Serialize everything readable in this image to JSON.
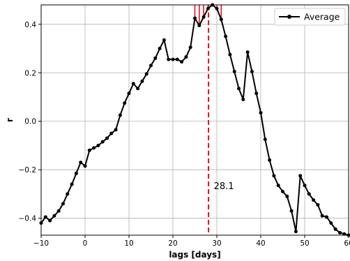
{
  "chart_data": {
    "type": "line",
    "xlabel": "lags [days]",
    "ylabel": "r",
    "xlim": [
      -10,
      60
    ],
    "ylim": [
      -0.47,
      0.48
    ],
    "xticks": [
      -10,
      0,
      10,
      20,
      30,
      40,
      50,
      60
    ],
    "yticks": [
      -0.4,
      -0.2,
      0.0,
      0.2,
      0.4
    ],
    "xtick_labels": [
      "−10",
      "0",
      "10",
      "20",
      "30",
      "40",
      "50",
      "60"
    ],
    "ytick_labels": [
      "−0.4",
      "−0.2",
      "0.0",
      "0.2",
      "0.4"
    ],
    "grid": true,
    "legend_position": "top-right",
    "series": [
      {
        "name": "Average",
        "color": "#000000",
        "marker": "circle",
        "x": [
          -10,
          -9,
          -8,
          -7,
          -6,
          -5,
          -4,
          -3,
          -2,
          -1,
          0,
          1,
          2,
          3,
          4,
          5,
          6,
          7,
          8,
          9,
          10,
          11,
          12,
          13,
          14,
          15,
          16,
          17,
          18,
          19,
          20,
          21,
          22,
          23,
          24,
          25,
          26,
          27,
          28,
          29,
          30,
          31,
          32,
          33,
          34,
          35,
          36,
          37,
          38,
          39,
          40,
          41,
          42,
          43,
          44,
          45,
          46,
          47,
          48,
          49,
          50,
          51,
          52,
          53,
          54,
          55,
          56,
          57,
          58,
          59,
          60
        ],
        "y": [
          -0.42,
          -0.395,
          -0.41,
          -0.39,
          -0.37,
          -0.34,
          -0.3,
          -0.26,
          -0.215,
          -0.17,
          -0.185,
          -0.12,
          -0.11,
          -0.1,
          -0.085,
          -0.07,
          -0.05,
          -0.035,
          0.025,
          0.075,
          0.115,
          0.155,
          0.135,
          0.165,
          0.195,
          0.23,
          0.26,
          0.3,
          0.335,
          0.255,
          0.255,
          0.255,
          0.245,
          0.265,
          0.305,
          0.425,
          0.395,
          0.43,
          0.465,
          0.48,
          0.465,
          0.42,
          0.35,
          0.275,
          0.205,
          0.135,
          0.09,
          0.285,
          0.205,
          0.115,
          0.035,
          -0.075,
          -0.16,
          -0.225,
          -0.265,
          -0.29,
          -0.31,
          -0.37,
          -0.455,
          -0.225,
          -0.265,
          -0.3,
          -0.325,
          -0.345,
          -0.39,
          -0.395,
          -0.42,
          -0.445,
          -0.46,
          -0.465,
          -0.47
        ]
      }
    ],
    "highlight_segments_x": [
      25,
      26,
      27,
      28,
      29,
      30,
      31
    ],
    "highlight_color": "#e8131a",
    "vline_x": 28.1,
    "vline_color": "#e8131a",
    "annotation": {
      "text": "28.1",
      "x": 29.3,
      "y": -0.265
    }
  }
}
